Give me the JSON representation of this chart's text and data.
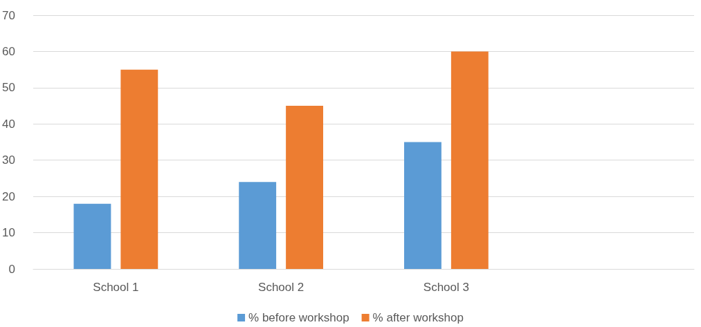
{
  "chart_data": {
    "type": "bar",
    "categories": [
      "School 1",
      "School 2",
      "School 3",
      null
    ],
    "series": [
      {
        "name": "% before workshop",
        "color": "#5b9bd5",
        "values": [
          18,
          24,
          35,
          null
        ]
      },
      {
        "name": "% after workshop",
        "color": "#ed7d31",
        "values": [
          55,
          45,
          60,
          null
        ]
      }
    ],
    "ylim": [
      0,
      70
    ],
    "yticks": [
      0,
      10,
      20,
      30,
      40,
      50,
      60,
      70
    ],
    "grid": "y",
    "legend": "bottom"
  }
}
